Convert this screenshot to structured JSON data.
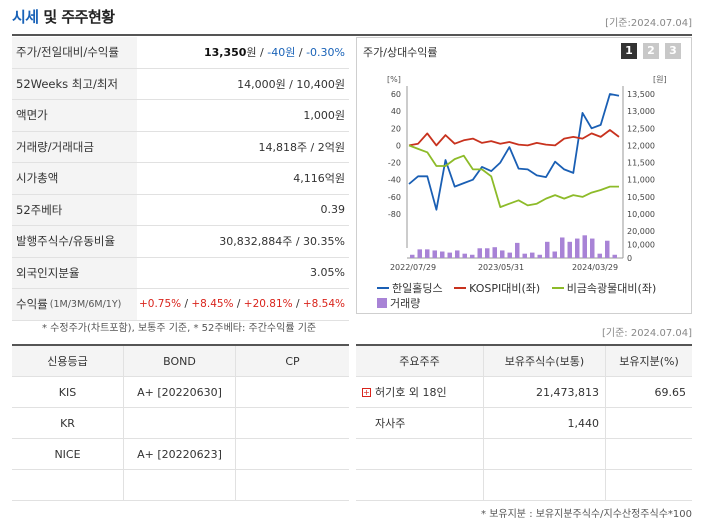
{
  "header": {
    "title_a": "시세",
    "title_b": "및 주주현황",
    "date": "[기준:2024.07.04]"
  },
  "quote": {
    "price_label": "주가/전일대비/수익률",
    "price": "13,350",
    "price_unit": "원",
    "sep": "/",
    "change": "-40원",
    "change_pct": "-0.30%",
    "wk52_label": "52Weeks 최고/최저",
    "wk52_value": "14,000원 / 10,400원",
    "face_label": "액면가",
    "face_value": "1,000원",
    "volume_label": "거래량/거래대금",
    "volume_value": "14,818주 / 2억원",
    "mcap_label": "시가총액",
    "mcap_value": "4,116억원",
    "beta_label": "52주베타",
    "beta_value": "0.39",
    "shares_label": "발행주식수/유동비율",
    "shares_value": "30,832,884주 / 30.35%",
    "foreign_label": "외국인지분율",
    "foreign_value": "3.05%",
    "return_label": "수익률",
    "return_sub": "(1M/3M/6M/1Y)",
    "r1": "+0.75%",
    "r2": "+8.45%",
    "r3": "+20.81%",
    "r4": "+8.54%",
    "note": "* 수정주가(차트포함), 보통주 기준, * 52주베타: 주간수익률 기준"
  },
  "chart_panel": {
    "title": "주가/상대수익률",
    "tabs": [
      "1",
      "2",
      "3"
    ],
    "date": "[기준: 2024.07.04]"
  },
  "chart_data": {
    "type": "line",
    "left_axis_label": "[%]",
    "right_axis_label": "[원]",
    "left_ticks": [
      "60",
      "40",
      "20",
      "0",
      "-20",
      "-40",
      "-60",
      "-80"
    ],
    "right_ticks": [
      "13,500",
      "13,000",
      "12,500",
      "12,000",
      "11,500",
      "11,000",
      "10,500",
      "10,000"
    ],
    "vol_ticks": [
      "20,000",
      "10,000",
      "0"
    ],
    "x_labels": [
      "2022/07/29",
      "2023/05/31",
      "2024/03/29"
    ],
    "ylim": [
      -80,
      60
    ],
    "series": [
      {
        "name": "한일홀딩스",
        "color": "#1a5fb4",
        "values": [
          -45,
          -36,
          -36,
          -75,
          -17,
          -48,
          -44,
          -40,
          -25,
          -30,
          -20,
          -2,
          -27,
          -28,
          -35,
          -37,
          -19,
          -28,
          -32,
          38,
          20,
          24,
          60,
          58
        ]
      },
      {
        "name": "KOSPI대비(좌)",
        "color": "#c8321e",
        "values": [
          0,
          2,
          14,
          0,
          12,
          2,
          6,
          8,
          3,
          5,
          2,
          4,
          1,
          0,
          3,
          1,
          0,
          8,
          10,
          8,
          14,
          10,
          18,
          10
        ]
      },
      {
        "name": "비금속광물대비(좌)",
        "color": "#8dbb29",
        "values": [
          0,
          -4,
          -8,
          -24,
          -24,
          -16,
          -12,
          -28,
          -28,
          -36,
          -72,
          -68,
          -64,
          -70,
          -68,
          -62,
          -58,
          -62,
          -58,
          -60,
          -55,
          -52,
          -48,
          -48
        ]
      }
    ],
    "volume": {
      "name": "거래량",
      "color": "#a883d6",
      "values": [
        3,
        8,
        8,
        7,
        6,
        5,
        7,
        4,
        3,
        9,
        9,
        10,
        7,
        5,
        14,
        4,
        5,
        3,
        15,
        6,
        19,
        15,
        18,
        21,
        18,
        4,
        16,
        3
      ]
    }
  },
  "credit": {
    "headers": [
      "신용등급",
      "BOND",
      "CP"
    ],
    "rows": [
      {
        "agency": "KIS",
        "bond": "A+  [20220630]",
        "cp": ""
      },
      {
        "agency": "KR",
        "bond": "",
        "cp": ""
      },
      {
        "agency": "NICE",
        "bond": "A+  [20220623]",
        "cp": ""
      },
      {
        "agency": "",
        "bond": "",
        "cp": ""
      }
    ]
  },
  "holders": {
    "headers": [
      "주요주주",
      "보유주식수(보통)",
      "보유지분(%)"
    ],
    "rows": [
      {
        "name": "허기호 외 18인",
        "shares": "21,473,813",
        "pct": "69.65",
        "expand": true
      },
      {
        "name": "자사주",
        "shares": "1,440",
        "pct": ""
      },
      {
        "name": "",
        "shares": "",
        "pct": ""
      },
      {
        "name": "",
        "shares": "",
        "pct": ""
      }
    ],
    "note": "* 보유지분 : 보유지분주식수/지수산정주식수*100"
  }
}
